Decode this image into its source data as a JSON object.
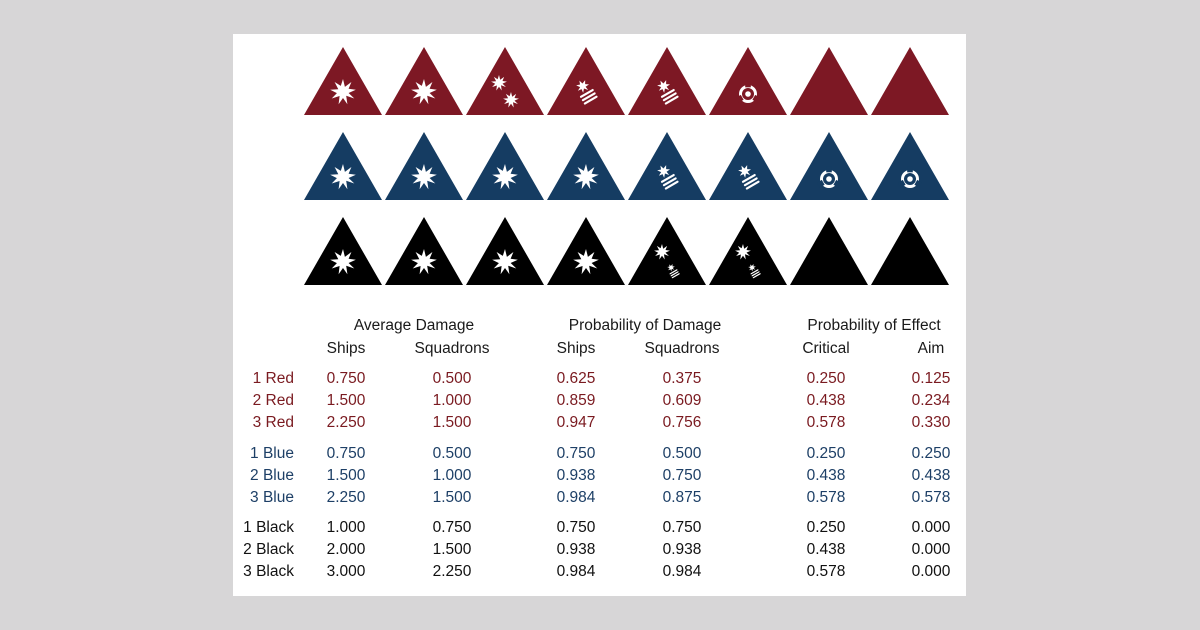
{
  "colors": {
    "red": "#7d1824",
    "blue": "#153c62",
    "black": "#000000",
    "red_text": "#7a1a20",
    "blue_text": "#1d3f66",
    "black_text": "#111111"
  },
  "dice": [
    {
      "color": "red",
      "faces": [
        "hit",
        "hit",
        "double-hit",
        "crit",
        "crit",
        "accuracy",
        "blank",
        "blank"
      ]
    },
    {
      "color": "blue",
      "faces": [
        "hit",
        "hit",
        "hit",
        "hit",
        "crit",
        "crit",
        "accuracy",
        "accuracy"
      ]
    },
    {
      "color": "black",
      "faces": [
        "hit",
        "hit",
        "hit",
        "hit",
        "hit-crit",
        "hit-crit",
        "blank",
        "blank"
      ]
    }
  ],
  "table": {
    "group_headers": [
      "Average Damage",
      "Probability of Damage",
      "Probability of Effect"
    ],
    "column_headers": [
      "Ships",
      "Squadrons",
      "Ships",
      "Squadrons",
      "Critical",
      "Aim"
    ],
    "rows": [
      {
        "label": "1 Red",
        "color": "red",
        "values": [
          "0.750",
          "0.500",
          "0.625",
          "0.375",
          "0.250",
          "0.125"
        ]
      },
      {
        "label": "2 Red",
        "color": "red",
        "values": [
          "1.500",
          "1.000",
          "0.859",
          "0.609",
          "0.438",
          "0.234"
        ]
      },
      {
        "label": "3 Red",
        "color": "red",
        "values": [
          "2.250",
          "1.500",
          "0.947",
          "0.756",
          "0.578",
          "0.330"
        ]
      },
      {
        "label": "1 Blue",
        "color": "blue",
        "values": [
          "0.750",
          "0.500",
          "0.750",
          "0.500",
          "0.250",
          "0.250"
        ]
      },
      {
        "label": "2 Blue",
        "color": "blue",
        "values": [
          "1.500",
          "1.000",
          "0.938",
          "0.750",
          "0.438",
          "0.438"
        ]
      },
      {
        "label": "3 Blue",
        "color": "blue",
        "values": [
          "2.250",
          "1.500",
          "0.984",
          "0.875",
          "0.578",
          "0.578"
        ]
      },
      {
        "label": "1 Black",
        "color": "black",
        "values": [
          "1.000",
          "0.750",
          "0.750",
          "0.750",
          "0.250",
          "0.000"
        ]
      },
      {
        "label": "2 Black",
        "color": "black",
        "values": [
          "2.000",
          "1.500",
          "0.938",
          "0.938",
          "0.438",
          "0.000"
        ]
      },
      {
        "label": "3 Black",
        "color": "black",
        "values": [
          "3.000",
          "2.250",
          "0.984",
          "0.984",
          "0.578",
          "0.000"
        ]
      }
    ]
  }
}
